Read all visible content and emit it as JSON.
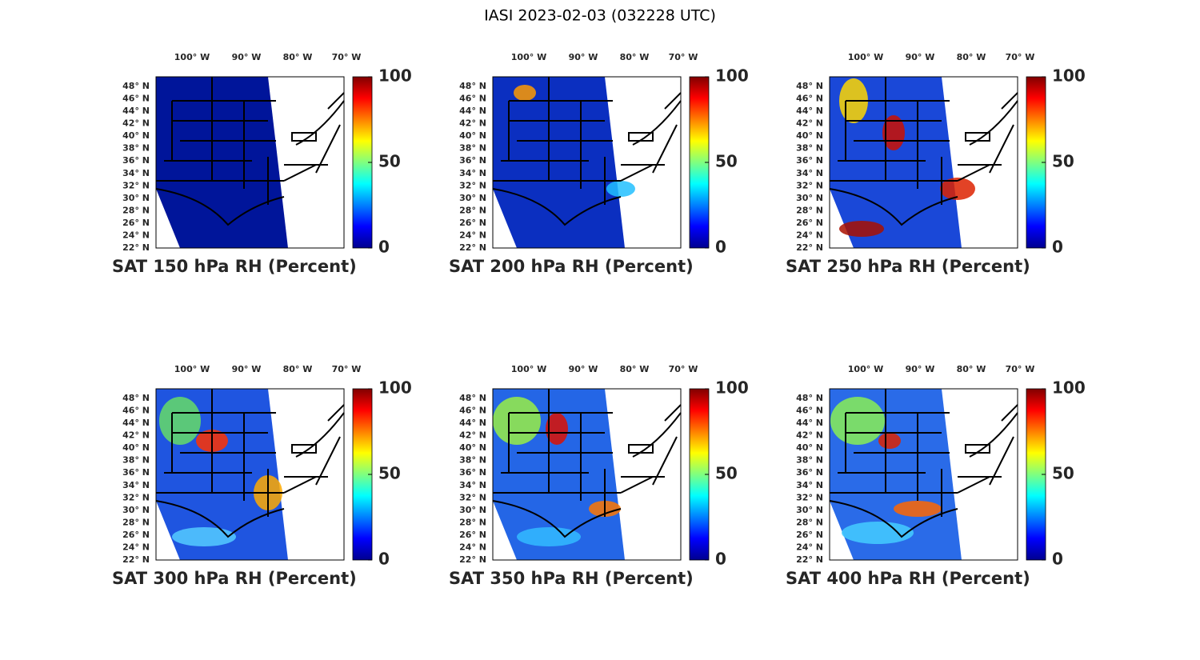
{
  "title": "IASI 2023-02-03 (032228 UTC)",
  "panels": [
    {
      "label": "SAT 150 hPa RH (Percent)"
    },
    {
      "label": "SAT 200 hPa RH (Percent)"
    },
    {
      "label": "SAT 250 hPa RH (Percent)"
    },
    {
      "label": "SAT 300 hPa RH (Percent)"
    },
    {
      "label": "SAT 350 hPa RH (Percent)"
    },
    {
      "label": "SAT 400 hPa RH (Percent)"
    }
  ],
  "lon_ticks": [
    "100° W",
    "90° W",
    "80° W",
    "70° W"
  ],
  "lat_ticks": [
    "48° N",
    "46° N",
    "44° N",
    "42° N",
    "40° N",
    "38° N",
    "36° N",
    "34° N",
    "32° N",
    "30° N",
    "28° N",
    "26° N",
    "24° N",
    "22° N"
  ],
  "colorbar": {
    "lim": [
      0,
      100
    ],
    "ticks": [
      0,
      50,
      100
    ]
  }
}
